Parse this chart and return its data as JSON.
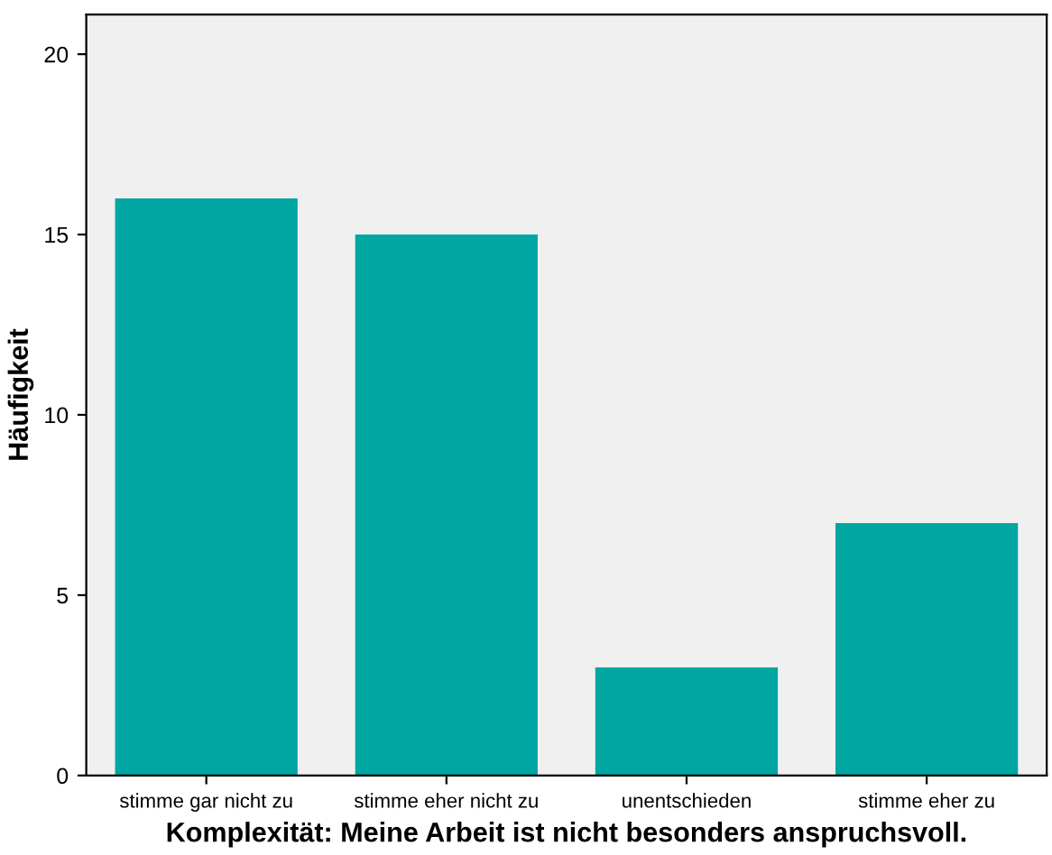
{
  "chart_data": {
    "type": "bar",
    "xlabel": "Komplexität: Meine Arbeit ist nicht besonders anspruchsvoll.",
    "ylabel": "Häufigkeit",
    "categories": [
      "stimme gar nicht zu",
      "stimme eher nicht zu",
      "unentschieden",
      "stimme eher zu"
    ],
    "values": [
      16,
      15,
      3,
      7
    ],
    "color": "#00a6a1",
    "ylim": [
      0,
      21.1
    ],
    "yticks": [
      0,
      5,
      10,
      15,
      20
    ],
    "grid": false
  }
}
